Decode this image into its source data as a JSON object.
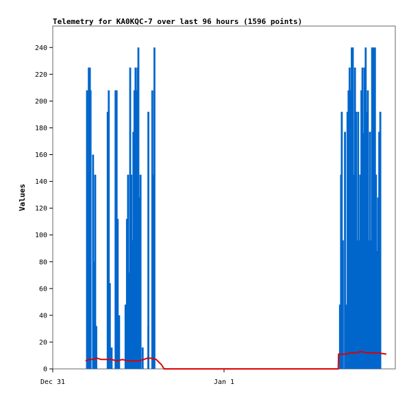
{
  "chart_data": {
    "type": "bar",
    "title": "Telemetry for KA0KQC-7 over last 96 hours (1596 points)",
    "xlabel": "",
    "ylabel": "Values",
    "ylim": [
      0,
      256
    ],
    "yticks": [
      0,
      20,
      40,
      60,
      80,
      100,
      120,
      140,
      160,
      180,
      200,
      220,
      240
    ],
    "xlim": [
      0,
      96
    ],
    "xticks": [
      {
        "value": 0,
        "label": "Dec 31"
      },
      {
        "value": 48,
        "label": "Jan 1"
      }
    ],
    "grid": false,
    "legend": "none",
    "series": [
      {
        "style": "bars",
        "color": "#0066cc",
        "points": [
          [
            9.6,
            208
          ],
          [
            9.9,
            145
          ],
          [
            10.1,
            225
          ],
          [
            10.4,
            225
          ],
          [
            10.6,
            208
          ],
          [
            11.3,
            160
          ],
          [
            11.6,
            80
          ],
          [
            11.9,
            145
          ],
          [
            12.2,
            32
          ],
          [
            15.4,
            192
          ],
          [
            15.7,
            208
          ],
          [
            16.0,
            64
          ],
          [
            16.5,
            16
          ],
          [
            17.6,
            208
          ],
          [
            17.9,
            208
          ],
          [
            18.2,
            112
          ],
          [
            18.6,
            40
          ],
          [
            20.4,
            48
          ],
          [
            20.8,
            112
          ],
          [
            21.1,
            145
          ],
          [
            21.4,
            72
          ],
          [
            21.7,
            225
          ],
          [
            22.0,
            145
          ],
          [
            22.3,
            96
          ],
          [
            22.6,
            177
          ],
          [
            22.9,
            208
          ],
          [
            23.2,
            225
          ],
          [
            23.5,
            208
          ],
          [
            23.8,
            225
          ],
          [
            24.0,
            240
          ],
          [
            24.3,
            128
          ],
          [
            24.6,
            145
          ],
          [
            25.2,
            16
          ],
          [
            26.8,
            192
          ],
          [
            26.8,
            32
          ],
          [
            27.9,
            208
          ],
          [
            28.2,
            145
          ],
          [
            28.5,
            240
          ],
          [
            80.5,
            48
          ],
          [
            80.8,
            145
          ],
          [
            81.0,
            192
          ],
          [
            81.3,
            96
          ],
          [
            81.9,
            177
          ],
          [
            82.3,
            48
          ],
          [
            82.6,
            192
          ],
          [
            82.9,
            208
          ],
          [
            83.2,
            225
          ],
          [
            83.5,
            208
          ],
          [
            83.8,
            240
          ],
          [
            84.1,
            240
          ],
          [
            84.4,
            145
          ],
          [
            84.7,
            225
          ],
          [
            85.0,
            192
          ],
          [
            85.3,
            96
          ],
          [
            85.6,
            192
          ],
          [
            85.9,
            96
          ],
          [
            86.2,
            145
          ],
          [
            86.5,
            208
          ],
          [
            86.8,
            225
          ],
          [
            87.1,
            176
          ],
          [
            87.4,
            225
          ],
          [
            87.7,
            240
          ],
          [
            88.0,
            192
          ],
          [
            88.3,
            208
          ],
          [
            88.6,
            96
          ],
          [
            88.9,
            177
          ],
          [
            89.2,
            96
          ],
          [
            89.5,
            240
          ],
          [
            89.8,
            240
          ],
          [
            90.1,
            225
          ],
          [
            90.3,
            240
          ],
          [
            90.6,
            145
          ],
          [
            90.9,
            88
          ],
          [
            91.2,
            128
          ],
          [
            91.5,
            177
          ],
          [
            91.8,
            192
          ]
        ]
      },
      {
        "style": "line",
        "color": "#dd0000",
        "points": [
          [
            9.2,
            6
          ],
          [
            10.2,
            7
          ],
          [
            11.2,
            7
          ],
          [
            12.5,
            8
          ],
          [
            13.5,
            7
          ],
          [
            15.0,
            7
          ],
          [
            16.5,
            7
          ],
          [
            18.0,
            6
          ],
          [
            19.5,
            7
          ],
          [
            21.0,
            6
          ],
          [
            22.5,
            6
          ],
          [
            24.0,
            6
          ],
          [
            25.5,
            7
          ],
          [
            26.5,
            8
          ],
          [
            27.5,
            8
          ],
          [
            29.0,
            7
          ],
          [
            30.5,
            3
          ],
          [
            31.2,
            0
          ],
          [
            33.0,
            0
          ],
          [
            50.0,
            0
          ],
          [
            80.0,
            0
          ],
          [
            80.1,
            11
          ],
          [
            82.0,
            11
          ],
          [
            83.5,
            12
          ],
          [
            85.0,
            12
          ],
          [
            86.5,
            13
          ],
          [
            88.0,
            12
          ],
          [
            89.5,
            12
          ],
          [
            91.0,
            12
          ],
          [
            93.5,
            11
          ]
        ]
      }
    ]
  }
}
